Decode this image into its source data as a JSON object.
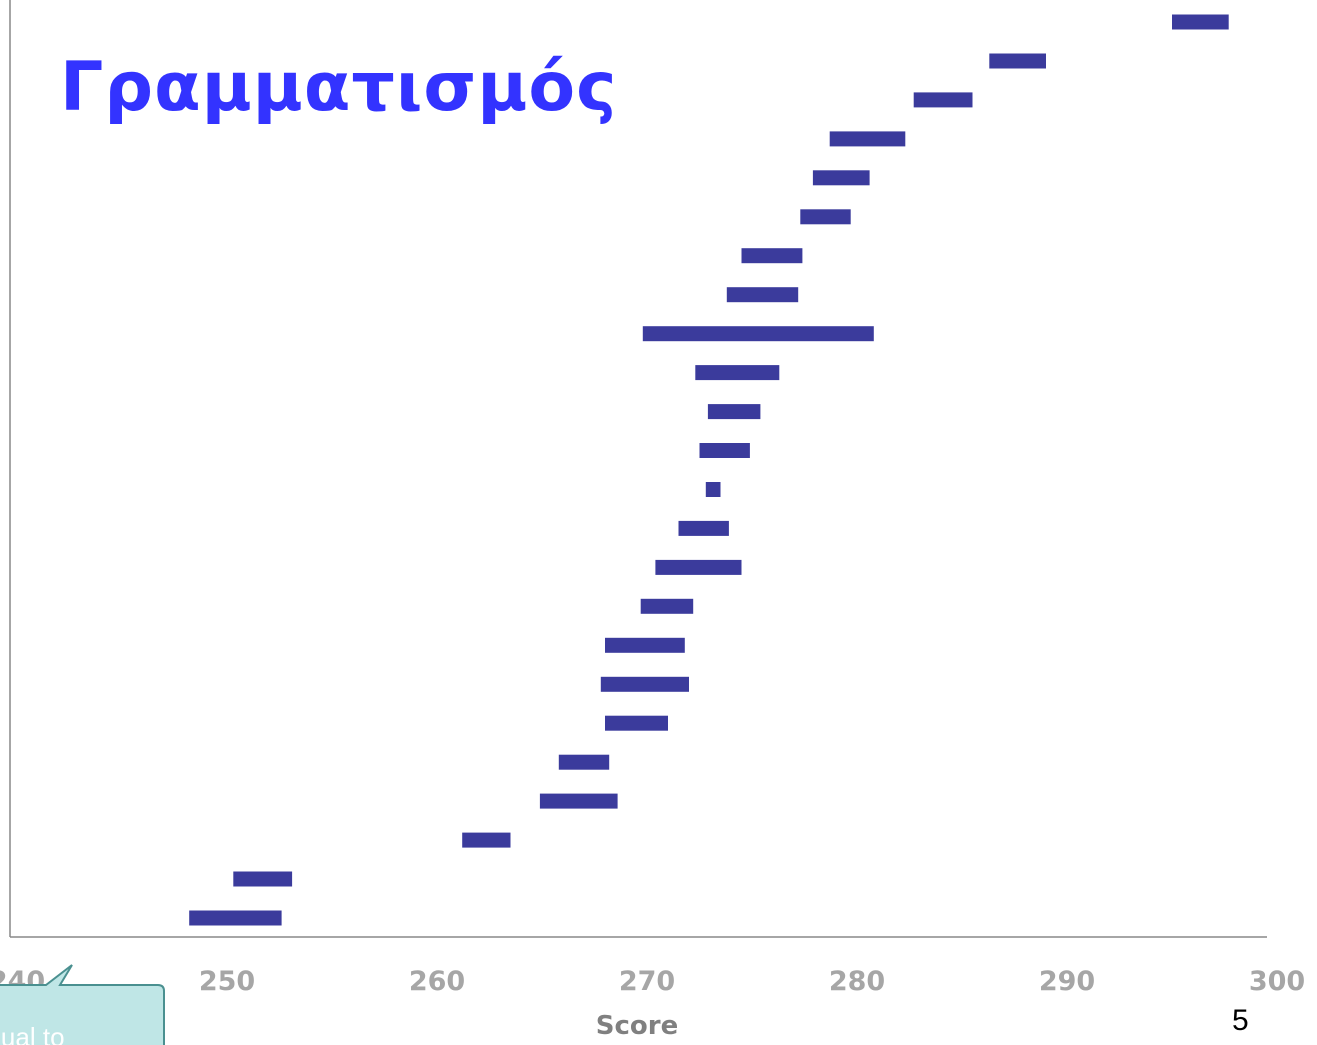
{
  "slide": {
    "title": "Γραμματισμός",
    "page_number": "5",
    "callout_text": "equal to"
  },
  "colors": {
    "bar": "#3b3b9c",
    "title": "#3333ff",
    "tick_label": "#a6a6a6",
    "axis_label": "#808080",
    "axis_line": "#888888",
    "callout_fill": "#bfe6e6",
    "callout_stroke": "#4a9090"
  },
  "chart_data": {
    "type": "range-bar",
    "title": "",
    "xlabel": "Score",
    "ylabel": "",
    "xlim": [
      240,
      300
    ],
    "x_ticks": [
      "240",
      "250",
      "260",
      "270",
      "280",
      "290",
      "300"
    ],
    "grid": false,
    "legend": "none",
    "series": [
      {
        "ranges": [
          [
            248.2,
            252.6
          ],
          [
            250.3,
            253.1
          ],
          [
            261.2,
            263.5
          ],
          [
            264.9,
            268.6
          ],
          [
            265.8,
            268.2
          ],
          [
            268.0,
            271.0
          ],
          [
            267.8,
            272.0
          ],
          [
            268.0,
            271.8
          ],
          [
            269.7,
            272.2
          ],
          [
            270.4,
            274.5
          ],
          [
            271.5,
            273.9
          ],
          [
            272.8,
            273.5
          ],
          [
            272.5,
            274.9
          ],
          [
            272.9,
            275.4
          ],
          [
            272.3,
            276.3
          ],
          [
            269.8,
            280.8
          ],
          [
            273.8,
            277.2
          ],
          [
            274.5,
            277.4
          ],
          [
            277.3,
            279.7
          ],
          [
            277.9,
            280.6
          ],
          [
            278.7,
            282.3
          ],
          [
            282.7,
            285.5
          ],
          [
            286.3,
            289.0
          ],
          [
            295.0,
            297.7
          ]
        ]
      }
    ]
  }
}
